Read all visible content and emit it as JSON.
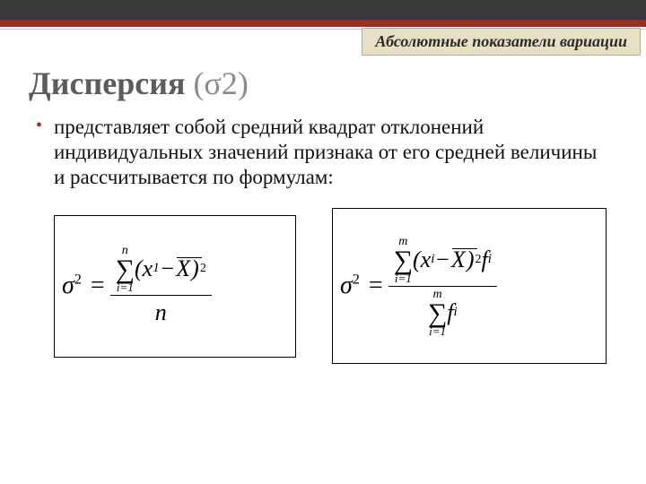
{
  "badge": "Абсолютные показатели вариации",
  "title_main": "Дисперсия",
  "title_paren": "(σ2)",
  "body": "представляет собой средний квадрат отклонений индивидуальных значений признака от его средней величины и рассчитывается по формулам:",
  "formula1": {
    "lhs_base": "σ",
    "lhs_exp": "2",
    "sum_top": "n",
    "sum_bot": "i=1",
    "term": "(x",
    "term_sub": "1",
    "term_mid": " − ",
    "xbar": "X",
    "term_close": ")",
    "term_exp": "2",
    "den": "n"
  },
  "formula2": {
    "lhs_base": "σ",
    "lhs_exp": "2",
    "sum_top": "m",
    "sum_bot": "i=1",
    "term": "(x",
    "term_sub": "i",
    "term_mid": " − ",
    "xbar": "X",
    "term_close": ")",
    "term_exp": "2",
    "weight": " f",
    "weight_sub": "i",
    "den_sum_top": "m",
    "den_sum_bot": "i=1",
    "den_weight": " f",
    "den_weight_sub": "i"
  },
  "colors": {
    "top_bar": "#3a3a3a",
    "stripe": "#9a2d24",
    "badge_bg": "#e8e0c4",
    "badge_border": "#b8ad86",
    "title": "#5c5c5c",
    "title_paren": "#8c8c8c"
  }
}
